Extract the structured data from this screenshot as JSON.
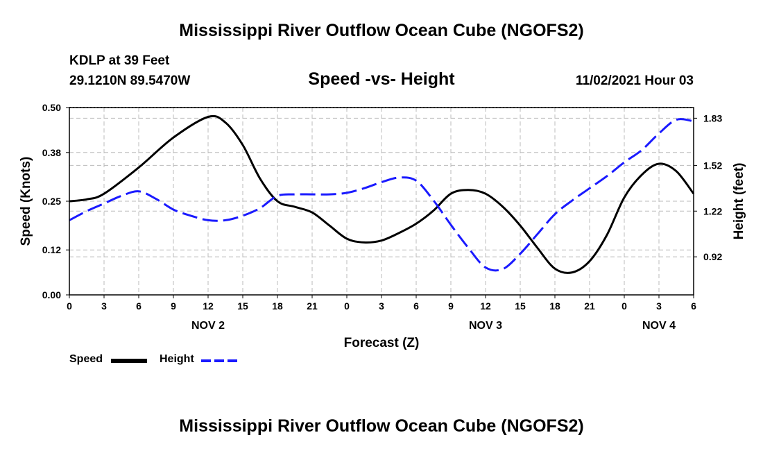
{
  "page": {
    "title_top": "Mississippi River Outflow Ocean Cube (NGOFS2)",
    "title_bottom": "Mississippi River Outflow Ocean Cube (NGOFS2)",
    "station": "KDLP at 39 Feet",
    "coords": "29.1210N  89.5470W",
    "subtitle": "Speed -vs- Height",
    "datetime": "11/02/2021 Hour 03"
  },
  "colors": {
    "speed": "#000000",
    "height": "#1a1aff",
    "grid": "#bbbbbb"
  },
  "chart_data": {
    "type": "line",
    "title": "Speed -vs- Height",
    "xlabel": "Forecast (Z)",
    "ylabel": "Speed (Knots)",
    "y2label": "Height (feet)",
    "xlim": [
      0,
      54
    ],
    "ylim": [
      0,
      0.5
    ],
    "y2lim": [
      0.67,
      1.9
    ],
    "x_ticks": [
      0,
      3,
      6,
      9,
      12,
      15,
      18,
      21,
      24,
      27,
      30,
      33,
      36,
      39,
      42,
      45,
      48,
      51,
      54
    ],
    "x_tick_labels": [
      "0",
      "3",
      "6",
      "9",
      "12",
      "15",
      "18",
      "21",
      "0",
      "3",
      "6",
      "9",
      "12",
      "15",
      "18",
      "21",
      "0",
      "3",
      "6"
    ],
    "y_ticks": [
      0.0,
      0.12,
      0.25,
      0.38,
      0.5
    ],
    "y_tick_labels": [
      "0.00",
      "0.12",
      "0.25",
      "0.38",
      "0.50"
    ],
    "y2_ticks": [
      0.92,
      1.22,
      1.52,
      1.83
    ],
    "y2_tick_labels": [
      "0.92",
      "1.22",
      "1.52",
      "1.83"
    ],
    "day_labels": [
      {
        "x": 12,
        "label": "NOV 2"
      },
      {
        "x": 36,
        "label": "NOV 3"
      },
      {
        "x": 51,
        "label": "NOV 4"
      }
    ],
    "grid": true,
    "legend": "bottom-left",
    "series": [
      {
        "name": "Speed",
        "axis": "left",
        "style": "solid",
        "x": [
          0,
          1.5,
          3,
          6,
          9,
          12,
          13.5,
          15,
          16.5,
          18,
          19.5,
          21,
          22.5,
          24,
          25.5,
          27,
          28.5,
          30,
          31.5,
          33,
          34.5,
          36,
          37.5,
          39,
          40.5,
          42,
          43.5,
          45,
          46.5,
          48,
          49.5,
          51,
          52.5,
          54
        ],
        "values": [
          0.25,
          0.255,
          0.27,
          0.34,
          0.42,
          0.475,
          0.46,
          0.4,
          0.31,
          0.25,
          0.235,
          0.22,
          0.185,
          0.15,
          0.14,
          0.145,
          0.165,
          0.19,
          0.225,
          0.27,
          0.28,
          0.27,
          0.235,
          0.185,
          0.125,
          0.07,
          0.06,
          0.09,
          0.16,
          0.26,
          0.32,
          0.35,
          0.33,
          0.27
        ]
      },
      {
        "name": "Height",
        "axis": "right",
        "style": "dashed",
        "x": [
          0,
          1.5,
          3,
          4.5,
          6,
          7.5,
          9,
          10.5,
          12,
          13.5,
          15,
          16.5,
          18,
          19.5,
          21,
          22.5,
          24,
          25.5,
          27,
          28.5,
          30,
          31.5,
          33,
          34.5,
          36,
          37.5,
          39,
          40.5,
          42,
          43.5,
          45,
          46.5,
          48,
          49.5,
          51,
          52.5,
          54
        ],
        "values": [
          1.16,
          1.22,
          1.27,
          1.32,
          1.35,
          1.3,
          1.23,
          1.19,
          1.16,
          1.16,
          1.19,
          1.24,
          1.32,
          1.33,
          1.33,
          1.33,
          1.34,
          1.37,
          1.41,
          1.44,
          1.42,
          1.29,
          1.13,
          0.98,
          0.85,
          0.84,
          0.94,
          1.07,
          1.2,
          1.29,
          1.37,
          1.45,
          1.54,
          1.62,
          1.73,
          1.82,
          1.81
        ]
      }
    ]
  }
}
